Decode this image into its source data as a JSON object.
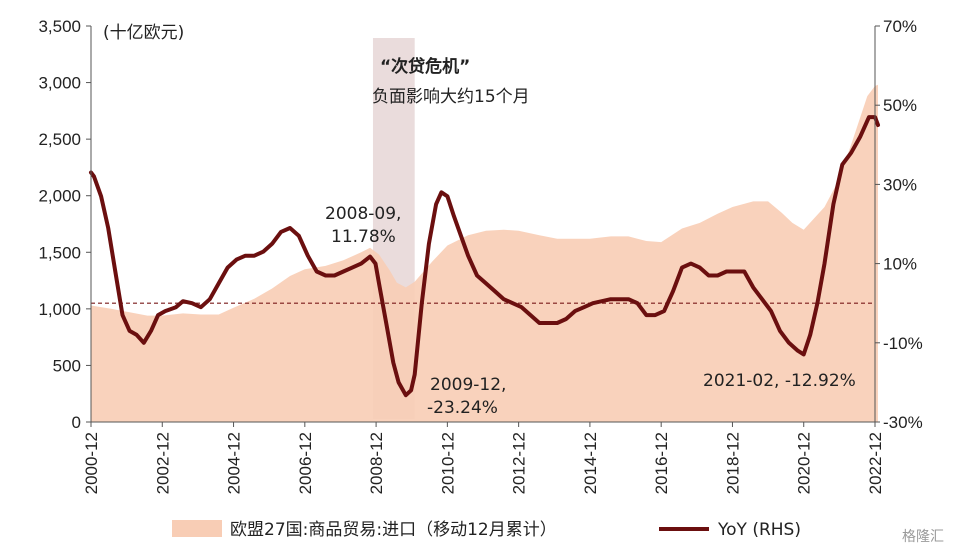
{
  "chart_data": {
    "type": "area",
    "unit_label": "(十亿欧元)",
    "y_left": {
      "lim": [
        0,
        3500
      ],
      "ticks": [
        0,
        500,
        1000,
        1500,
        2000,
        2500,
        3000,
        3500
      ],
      "tick_labels": [
        "0",
        "500",
        "1,000",
        "1,500",
        "2,000",
        "2,500",
        "3,000",
        "3,500"
      ]
    },
    "y_right": {
      "lim": [
        -30,
        70
      ],
      "ticks": [
        -30,
        -10,
        10,
        30,
        50,
        70
      ],
      "tick_labels": [
        "-30%",
        "-10%",
        "10%",
        "30%",
        "50%",
        "70%"
      ]
    },
    "x_ticks": [
      {
        "x": 2000.917,
        "label": "2000-12"
      },
      {
        "x": 2002.917,
        "label": "2002-12"
      },
      {
        "x": 2004.917,
        "label": "2004-12"
      },
      {
        "x": 2006.917,
        "label": "2006-12"
      },
      {
        "x": 2008.917,
        "label": "2008-12"
      },
      {
        "x": 2010.917,
        "label": "2010-12"
      },
      {
        "x": 2012.917,
        "label": "2012-12"
      },
      {
        "x": 2014.917,
        "label": "2014-12"
      },
      {
        "x": 2016.917,
        "label": "2016-12"
      },
      {
        "x": 2018.917,
        "label": "2018-12"
      },
      {
        "x": 2020.917,
        "label": "2020-12"
      },
      {
        "x": 2022.917,
        "label": "2022-12"
      }
    ],
    "x_range": [
      2000.917,
      2023.0
    ],
    "shaded_period": {
      "start": 2008.83,
      "end": 2010.0
    },
    "reference_line_pct": 0,
    "series": [
      {
        "name": "欧盟27国:商品贸易:进口（移动12月累计）",
        "axis": "left",
        "color": "#f8cdb5",
        "points": [
          [
            2000.917,
            1030
          ],
          [
            2001.5,
            1000
          ],
          [
            2002.0,
            970
          ],
          [
            2002.5,
            940
          ],
          [
            2002.917,
            940
          ],
          [
            2003.5,
            960
          ],
          [
            2004.0,
            950
          ],
          [
            2004.5,
            950
          ],
          [
            2004.917,
            1010
          ],
          [
            2005.5,
            1090
          ],
          [
            2006.0,
            1180
          ],
          [
            2006.5,
            1290
          ],
          [
            2006.917,
            1350
          ],
          [
            2007.5,
            1380
          ],
          [
            2008.0,
            1430
          ],
          [
            2008.5,
            1500
          ],
          [
            2008.75,
            1540
          ],
          [
            2009.0,
            1480
          ],
          [
            2009.3,
            1340
          ],
          [
            2009.5,
            1230
          ],
          [
            2009.75,
            1190
          ],
          [
            2010.0,
            1240
          ],
          [
            2010.5,
            1420
          ],
          [
            2010.917,
            1560
          ],
          [
            2011.5,
            1650
          ],
          [
            2012.0,
            1690
          ],
          [
            2012.5,
            1700
          ],
          [
            2012.917,
            1690
          ],
          [
            2013.5,
            1650
          ],
          [
            2014.0,
            1620
          ],
          [
            2014.5,
            1620
          ],
          [
            2014.917,
            1620
          ],
          [
            2015.5,
            1640
          ],
          [
            2016.0,
            1640
          ],
          [
            2016.5,
            1600
          ],
          [
            2016.917,
            1590
          ],
          [
            2017.5,
            1710
          ],
          [
            2018.0,
            1760
          ],
          [
            2018.5,
            1840
          ],
          [
            2018.917,
            1900
          ],
          [
            2019.5,
            1950
          ],
          [
            2019.917,
            1950
          ],
          [
            2020.3,
            1850
          ],
          [
            2020.6,
            1760
          ],
          [
            2020.917,
            1700
          ],
          [
            2021.5,
            1900
          ],
          [
            2021.917,
            2150
          ],
          [
            2022.3,
            2500
          ],
          [
            2022.7,
            2880
          ],
          [
            2022.917,
            2970
          ],
          [
            2023.0,
            2980
          ]
        ]
      },
      {
        "name": "YoY (RHS)",
        "axis": "right",
        "color": "#6b0f0f",
        "points": [
          [
            2000.917,
            33
          ],
          [
            2001.0,
            32
          ],
          [
            2001.2,
            27
          ],
          [
            2001.4,
            19
          ],
          [
            2001.6,
            8
          ],
          [
            2001.8,
            -3
          ],
          [
            2002.0,
            -7
          ],
          [
            2002.2,
            -8
          ],
          [
            2002.4,
            -10
          ],
          [
            2002.6,
            -7
          ],
          [
            2002.8,
            -3
          ],
          [
            2003.0,
            -2
          ],
          [
            2003.3,
            -1
          ],
          [
            2003.5,
            0.5
          ],
          [
            2003.75,
            0
          ],
          [
            2004.0,
            -1
          ],
          [
            2004.25,
            1
          ],
          [
            2004.5,
            5
          ],
          [
            2004.75,
            9
          ],
          [
            2005.0,
            11
          ],
          [
            2005.25,
            12
          ],
          [
            2005.5,
            12
          ],
          [
            2005.75,
            13
          ],
          [
            2006.0,
            15
          ],
          [
            2006.25,
            18
          ],
          [
            2006.5,
            19
          ],
          [
            2006.75,
            17
          ],
          [
            2007.0,
            12
          ],
          [
            2007.25,
            8
          ],
          [
            2007.5,
            7
          ],
          [
            2007.75,
            7
          ],
          [
            2008.0,
            8
          ],
          [
            2008.25,
            9
          ],
          [
            2008.5,
            10
          ],
          [
            2008.75,
            11.78
          ],
          [
            2008.9,
            10
          ],
          [
            2009.0,
            5
          ],
          [
            2009.2,
            -5
          ],
          [
            2009.4,
            -15
          ],
          [
            2009.55,
            -20
          ],
          [
            2009.75,
            -23.24
          ],
          [
            2009.9,
            -22
          ],
          [
            2010.0,
            -18
          ],
          [
            2010.2,
            0
          ],
          [
            2010.4,
            15
          ],
          [
            2010.6,
            25
          ],
          [
            2010.75,
            28
          ],
          [
            2010.917,
            27
          ],
          [
            2011.1,
            22
          ],
          [
            2011.3,
            17
          ],
          [
            2011.5,
            12
          ],
          [
            2011.75,
            7
          ],
          [
            2012.0,
            5
          ],
          [
            2012.25,
            3
          ],
          [
            2012.5,
            1
          ],
          [
            2012.75,
            0
          ],
          [
            2013.0,
            -1
          ],
          [
            2013.25,
            -3
          ],
          [
            2013.5,
            -5
          ],
          [
            2013.75,
            -5
          ],
          [
            2014.0,
            -5
          ],
          [
            2014.25,
            -4
          ],
          [
            2014.5,
            -2
          ],
          [
            2014.75,
            -1
          ],
          [
            2015.0,
            0
          ],
          [
            2015.25,
            0.5
          ],
          [
            2015.5,
            1
          ],
          [
            2015.75,
            1
          ],
          [
            2016.0,
            1
          ],
          [
            2016.25,
            0
          ],
          [
            2016.5,
            -3
          ],
          [
            2016.75,
            -3
          ],
          [
            2017.0,
            -2
          ],
          [
            2017.25,
            3
          ],
          [
            2017.5,
            9
          ],
          [
            2017.75,
            10
          ],
          [
            2018.0,
            9
          ],
          [
            2018.25,
            7
          ],
          [
            2018.5,
            7
          ],
          [
            2018.75,
            8
          ],
          [
            2019.0,
            8
          ],
          [
            2019.25,
            8
          ],
          [
            2019.5,
            4
          ],
          [
            2019.75,
            1
          ],
          [
            2020.0,
            -2
          ],
          [
            2020.25,
            -7
          ],
          [
            2020.5,
            -10
          ],
          [
            2020.75,
            -12
          ],
          [
            2020.917,
            -12.92
          ],
          [
            2021.1,
            -8
          ],
          [
            2021.3,
            0
          ],
          [
            2021.5,
            10
          ],
          [
            2021.75,
            25
          ],
          [
            2022.0,
            35
          ],
          [
            2022.25,
            38
          ],
          [
            2022.5,
            42
          ],
          [
            2022.75,
            47
          ],
          [
            2022.917,
            47
          ],
          [
            2023.0,
            45
          ]
        ]
      }
    ],
    "annotations": [
      {
        "text": "“次贷危机”",
        "bold": true
      },
      {
        "text": "负面影响大约15个月"
      },
      {
        "text": "2008-09,",
        "point": [
          2008.75,
          11.78
        ]
      },
      {
        "text": "11.78%"
      },
      {
        "text": "2009-12,",
        "point": [
          2009.75,
          -23.24
        ]
      },
      {
        "text": "-23.24%"
      },
      {
        "text": "2021-02, -12.92%",
        "point": [
          2020.917,
          -12.92
        ]
      }
    ],
    "legend": [
      {
        "label": "欧盟27国:商品贸易:进口（移动12月累计）",
        "kind": "area",
        "color": "#f8cdb5"
      },
      {
        "label": "YoY (RHS)",
        "kind": "line",
        "color": "#6b0f0f"
      }
    ],
    "watermark": "格隆汇"
  }
}
